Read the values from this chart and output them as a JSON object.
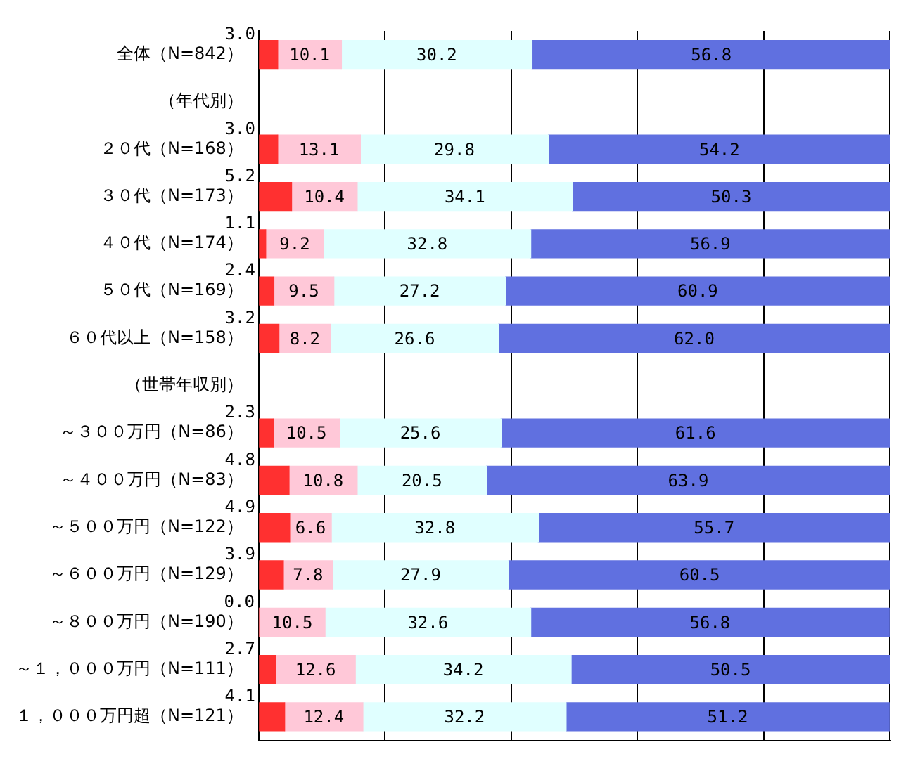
{
  "chart_data": {
    "type": "bar",
    "orientation": "horizontal",
    "stacked": true,
    "categories": [
      "全体（N=842）",
      "（年代別）",
      "２０代（N=168）",
      "３０代（N=173）",
      "４０代（N=174）",
      "５０代（N=169）",
      "６０代以上（N=158）",
      "（世帯年収別）",
      "～３００万円（N=86）",
      "～４００万円（N=83）",
      "～５００万円（N=122）",
      "～６００万円（N=129）",
      "～８００万円（N=190）",
      "～１，０００万円（N=111）",
      "１，０００万円超（N=121）"
    ],
    "series": [
      {
        "color": "#ff3030",
        "values": [
          3.0,
          null,
          3.0,
          5.2,
          1.1,
          2.4,
          3.2,
          null,
          2.3,
          4.8,
          4.9,
          3.9,
          0.0,
          2.7,
          4.1
        ],
        "value_labels": [
          "3.0",
          null,
          "3.0",
          "5.2",
          "1.1",
          "2.4",
          "3.2",
          null,
          "2.3",
          "4.8",
          "4.9",
          "3.9",
          "0.0",
          "2.7",
          "4.1"
        ]
      },
      {
        "color": "#ffc8d8",
        "values": [
          10.1,
          null,
          13.1,
          10.4,
          9.2,
          9.5,
          8.2,
          null,
          10.5,
          10.8,
          6.6,
          7.8,
          10.5,
          12.6,
          12.4
        ],
        "value_labels": [
          "10.1",
          null,
          "13.1",
          "10.4",
          "9.2",
          "9.5",
          "8.2",
          null,
          "10.5",
          "10.8",
          "6.6",
          "7.8",
          "10.5",
          "12.6",
          "12.4"
        ]
      },
      {
        "color": "#e0ffff",
        "values": [
          30.2,
          null,
          29.8,
          34.1,
          32.8,
          27.2,
          26.6,
          null,
          25.6,
          20.5,
          32.8,
          27.9,
          32.6,
          34.2,
          32.2
        ],
        "value_labels": [
          "30.2",
          null,
          "29.8",
          "34.1",
          "32.8",
          "27.2",
          "26.6",
          null,
          "25.6",
          "20.5",
          "32.8",
          "27.9",
          "32.6",
          "34.2",
          "32.2"
        ]
      },
      {
        "color": "#6070e0",
        "values": [
          56.8,
          null,
          54.2,
          50.3,
          56.9,
          60.9,
          62.0,
          null,
          61.6,
          63.9,
          55.7,
          60.5,
          56.8,
          50.5,
          51.2
        ],
        "value_labels": [
          "56.8",
          null,
          "54.2",
          "50.3",
          "56.9",
          "60.9",
          "62.0",
          null,
          "61.6",
          "63.9",
          "55.7",
          "60.5",
          "56.8",
          "50.5",
          "51.2"
        ]
      }
    ],
    "xlim": [
      0,
      100.1
    ],
    "xticks": [
      {
        "value": 0,
        "label": null
      },
      {
        "value": 20,
        "label": null
      },
      {
        "value": 40,
        "label": null
      },
      {
        "value": 60,
        "label": null
      },
      {
        "value": 80,
        "label": null
      },
      {
        "value": 100,
        "label": null
      }
    ],
    "grid": "x",
    "tick_labels": "y"
  }
}
